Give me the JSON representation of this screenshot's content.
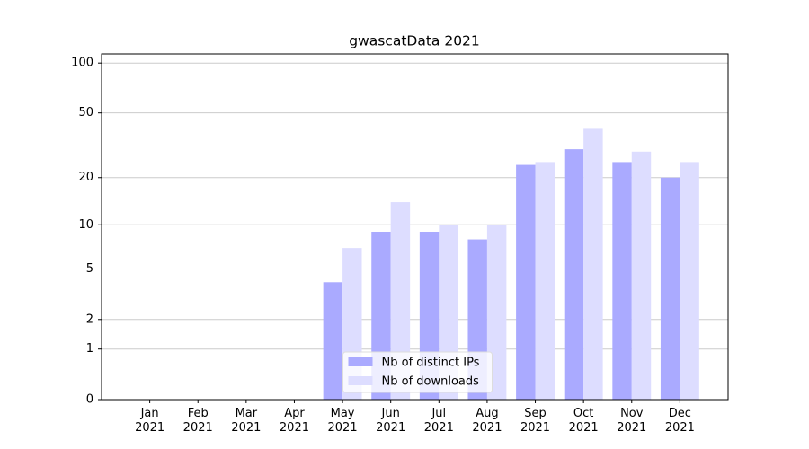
{
  "chart_data": {
    "type": "bar",
    "title": "gwascatData 2021",
    "categories": [
      "Jan\n2021",
      "Feb\n2021",
      "Mar\n2021",
      "Apr\n2021",
      "May\n2021",
      "Jun\n2021",
      "Jul\n2021",
      "Aug\n2021",
      "Sep\n2021",
      "Oct\n2021",
      "Nov\n2021",
      "Dec\n2021"
    ],
    "series": [
      {
        "name": "Nb of distinct IPs",
        "color": "#aaaaff",
        "values": [
          0,
          0,
          0,
          0,
          4,
          9,
          9,
          8,
          24,
          30,
          25,
          20
        ]
      },
      {
        "name": "Nb of downloads",
        "color": "#ddddff",
        "values": [
          0,
          0,
          0,
          0,
          7,
          14,
          10,
          10,
          25,
          40,
          29,
          25
        ]
      }
    ],
    "yscale": "log1p",
    "ylim": [
      0,
      113.5
    ],
    "yticks": [
      0,
      1,
      2,
      5,
      10,
      20,
      50,
      100
    ],
    "grid": true,
    "legend": "lower center"
  }
}
